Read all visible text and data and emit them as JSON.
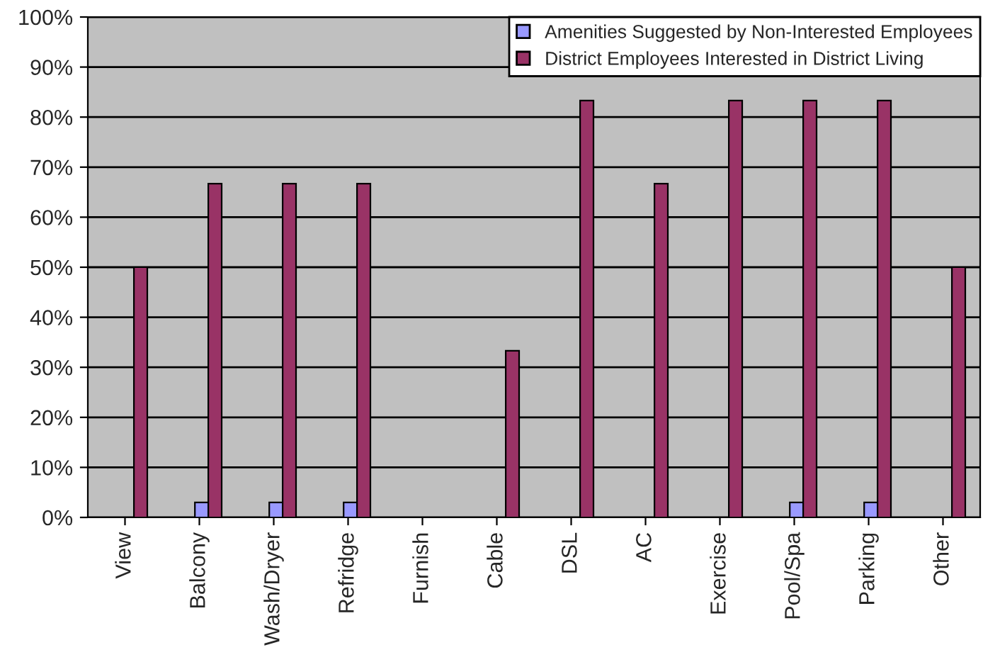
{
  "chart_data": {
    "type": "bar",
    "categories": [
      "View",
      "Balcony",
      "Wash/Dryer",
      "Refridge",
      "Furnish",
      "Cable",
      "DSL",
      "AC",
      "Exercise",
      "Pool/Spa",
      "Parking",
      "Other"
    ],
    "series": [
      {
        "name": "Amenities Suggested by Non-Interested Employees",
        "color": "#9999ff",
        "values": [
          0,
          3,
          3,
          3,
          0,
          0,
          0,
          0,
          0,
          3,
          3,
          0
        ]
      },
      {
        "name": "District Employees Interested in District Living",
        "color": "#993366",
        "values": [
          50,
          66.7,
          66.7,
          66.7,
          0,
          33.3,
          83.3,
          66.7,
          83.3,
          83.3,
          83.3,
          50
        ]
      }
    ],
    "ylim": [
      0,
      100
    ],
    "yticks": [
      {
        "value": 0,
        "label": "0%"
      },
      {
        "value": 10,
        "label": "10%"
      },
      {
        "value": 20,
        "label": "20%"
      },
      {
        "value": 30,
        "label": "30%"
      },
      {
        "value": 40,
        "label": "40%"
      },
      {
        "value": 50,
        "label": "50%"
      },
      {
        "value": 60,
        "label": "60%"
      },
      {
        "value": 70,
        "label": "70%"
      },
      {
        "value": 80,
        "label": "80%"
      },
      {
        "value": 90,
        "label": "90%"
      },
      {
        "value": 100,
        "label": "100%"
      }
    ],
    "grid": "y",
    "legend": "top right"
  }
}
